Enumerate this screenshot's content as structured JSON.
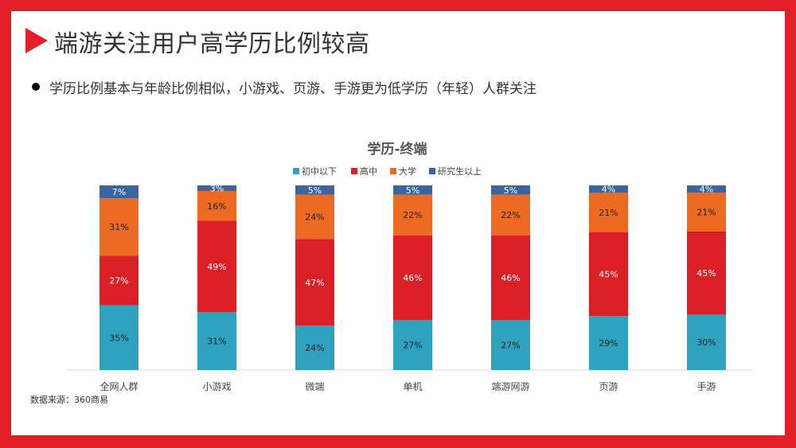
{
  "title": "端游关注用户高学历比例较高",
  "bullet": "学历比例基本与年龄比例相似，小游戏、页游、手游更为低学历（年轻）人群关注",
  "source": "数据来源：360商易",
  "colors": {
    "brand_red": "#e41e26",
    "series": [
      "#2ea2bf",
      "#da1f27",
      "#ec6a21",
      "#3b65a1"
    ]
  },
  "chart_data": {
    "type": "bar",
    "stacked": true,
    "title": "学历-终端",
    "legend_position": "top",
    "categories": [
      "全网人群",
      "小游戏",
      "微端",
      "单机",
      "端游网游",
      "页游",
      "手游"
    ],
    "series": [
      {
        "name": "初中以下",
        "values": [
          35,
          31,
          24,
          27,
          27,
          29,
          30
        ],
        "labels": [
          "35%",
          "31%",
          "24%",
          "27%",
          "27%",
          "29%",
          "30%"
        ]
      },
      {
        "name": "高中",
        "values": [
          27,
          49,
          47,
          46,
          46,
          45,
          45
        ],
        "labels": [
          "27%",
          "49%",
          "47%",
          "46%",
          "46%",
          "45%",
          "45%"
        ]
      },
      {
        "name": "大学",
        "values": [
          31,
          16,
          24,
          22,
          22,
          21,
          21
        ],
        "labels": [
          "31%",
          "16%",
          "24%",
          "22%",
          "22%",
          "21%",
          "21%"
        ]
      },
      {
        "name": "研究生以上",
        "values": [
          7,
          3,
          5,
          5,
          5,
          4,
          4
        ],
        "labels": [
          "7%",
          "3%",
          "5%",
          "5%",
          "5%",
          "4%",
          "4%"
        ]
      }
    ],
    "ylim": [
      0,
      100
    ]
  }
}
